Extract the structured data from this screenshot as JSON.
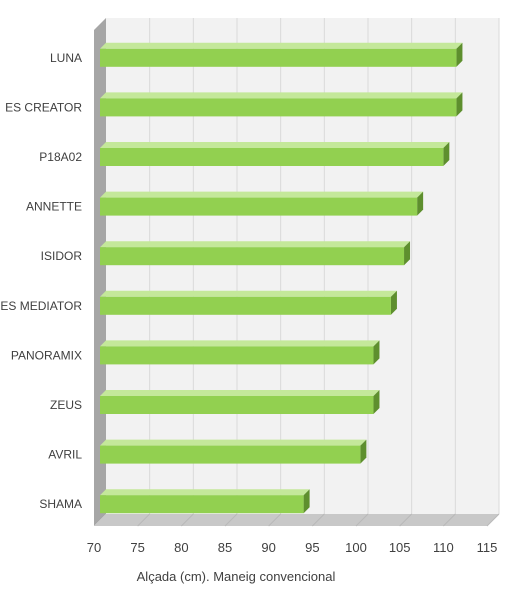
{
  "chart_data": {
    "type": "bar",
    "orientation": "horizontal",
    "style": "3d",
    "categories": [
      "LUNA",
      "ES CREATOR",
      "P18A02",
      "ANNETTE",
      "ISIDOR",
      "ES MEDIATOR",
      "PANORAMIX",
      "ZEUS",
      "AVRIL",
      "SHAMA"
    ],
    "values": [
      111.5,
      111.5,
      110,
      107,
      105.5,
      104,
      102,
      102,
      100.5,
      94
    ],
    "xlabel": "Alçada (cm). Maneig  convencional",
    "xlim": [
      70,
      115
    ],
    "xticks": [
      70,
      75,
      80,
      85,
      90,
      95,
      100,
      105,
      110,
      115
    ],
    "grid": true,
    "legend": "none",
    "colors": {
      "bar_front": "#92d050",
      "bar_top": "#c4e89a",
      "bar_side": "#5e8f2e",
      "floor": "#c8c8c8",
      "back_wall": "#f2f2f2",
      "left_wall": "#a6a6a6",
      "gridline": "#d9d9d9"
    }
  }
}
